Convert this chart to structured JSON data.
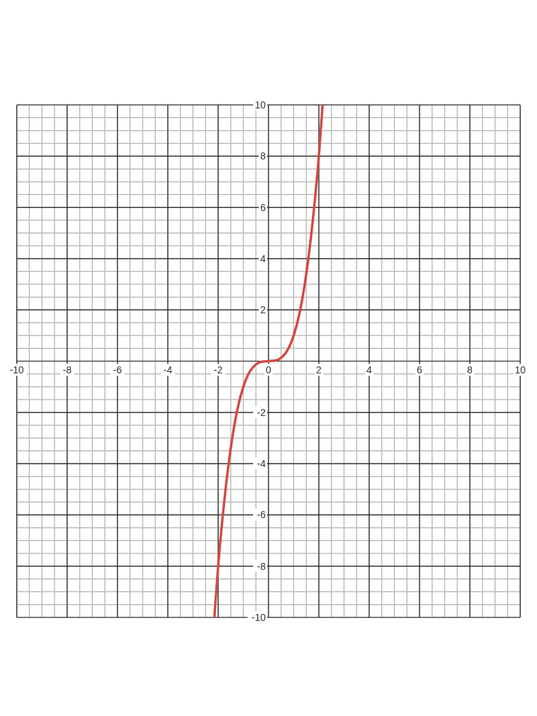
{
  "chart_data": {
    "type": "line",
    "x": [
      -2.15,
      -2,
      -1.75,
      -1.5,
      -1.25,
      -1,
      -0.75,
      -0.5,
      -0.25,
      0,
      0.25,
      0.5,
      0.75,
      1,
      1.25,
      1.5,
      1.75,
      2,
      2.15
    ],
    "series": [
      {
        "color": "#d24a46",
        "values": [
          -10,
          -8,
          -5.4,
          -3.4,
          -1.95,
          -1,
          -0.42,
          -0.13,
          -0.02,
          0,
          0.02,
          0.13,
          0.42,
          1,
          1.95,
          3.4,
          5.4,
          8,
          10
        ]
      }
    ],
    "xlim": [
      -10,
      10
    ],
    "ylim": [
      -10,
      10
    ],
    "xticks": [
      -10,
      -8,
      -6,
      -4,
      -2,
      0,
      2,
      4,
      6,
      8,
      10
    ],
    "yticks": [
      -10,
      -8,
      -6,
      -4,
      -2,
      {
        "value": 0,
        "label": null
      },
      2,
      4,
      6,
      8,
      10
    ],
    "grid": true,
    "marker": "none",
    "line_style": "solid"
  }
}
